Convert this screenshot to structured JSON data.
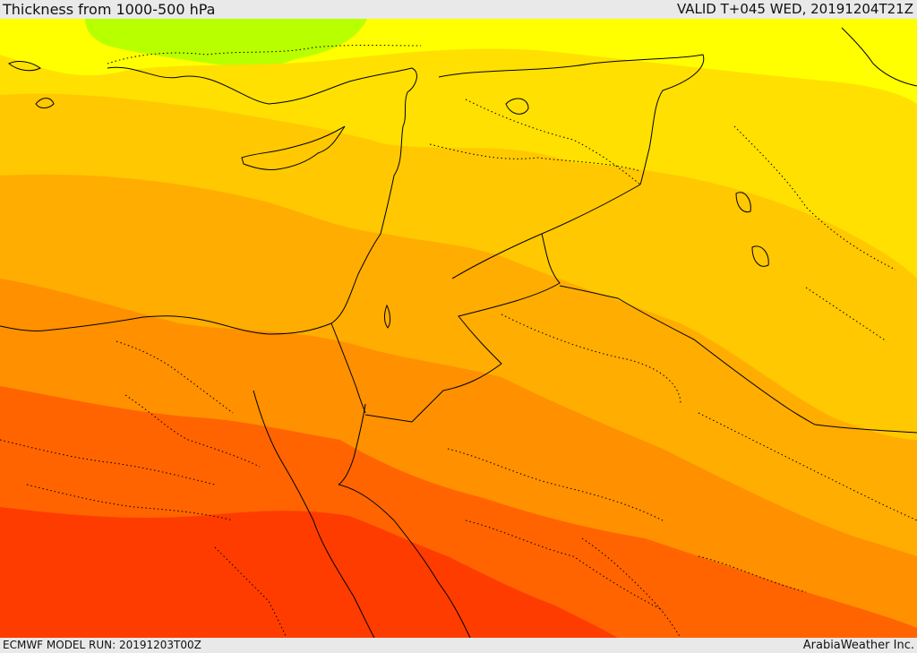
{
  "header": {
    "title": "Thickness from 1000-500 hPa",
    "valid": "VALID T+045 WED, 20191204T21Z"
  },
  "footer": {
    "model_run": "ECMWF MODEL RUN: 20191203T00Z",
    "credit": "ArabiaWeather Inc."
  },
  "colors": {
    "band_green": "#b8ff00",
    "band_yellow": "#ffff00",
    "band_light_orange": "#ffe000",
    "band_gold": "#ffc800",
    "band_orange": "#ffad00",
    "band_deep_orange": "#ff9000",
    "band_red_orange": "#ff6400",
    "band_red": "#ff3c00",
    "coastline": "#000000"
  }
}
